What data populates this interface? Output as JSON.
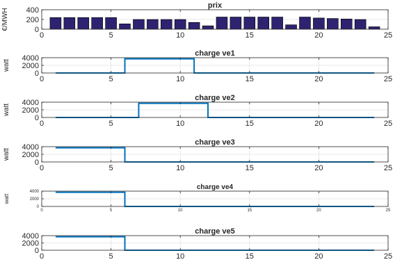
{
  "chart_data": [
    {
      "type": "bar",
      "title": "prix",
      "xlabel": "",
      "ylabel": "€/MWH",
      "xlim": [
        0,
        25
      ],
      "ylim": [
        0,
        400
      ],
      "xticks": [
        0,
        5,
        10,
        15,
        20,
        25
      ],
      "yticks": [
        0,
        200,
        400
      ],
      "grid": true,
      "bar_color": "#2e2370",
      "x": [
        1,
        2,
        3,
        4,
        5,
        6,
        7,
        8,
        9,
        10,
        11,
        12,
        13,
        14,
        15,
        16,
        17,
        18,
        19,
        20,
        21,
        22,
        23,
        24
      ],
      "values": [
        240,
        240,
        240,
        240,
        240,
        110,
        200,
        200,
        200,
        200,
        140,
        70,
        250,
        250,
        250,
        250,
        250,
        90,
        250,
        230,
        220,
        210,
        200,
        50
      ]
    },
    {
      "type": "line",
      "title": "charge ve1",
      "xlabel": "",
      "ylabel": "watt",
      "xlim": [
        0,
        25
      ],
      "ylim": [
        0,
        4000
      ],
      "xticks": [
        0,
        5,
        10,
        15,
        20,
        25
      ],
      "yticks": [
        0,
        2000,
        4000
      ],
      "grid": true,
      "line_color": "#0072bd",
      "step": "post",
      "x": [
        1,
        6,
        11,
        24
      ],
      "values": [
        0,
        3700,
        0,
        0
      ]
    },
    {
      "type": "line",
      "title": "charge ve2",
      "xlabel": "",
      "ylabel": "watt",
      "xlim": [
        0,
        25
      ],
      "ylim": [
        0,
        4000
      ],
      "xticks": [
        0,
        5,
        10,
        15,
        20,
        25
      ],
      "yticks": [
        0,
        2000,
        4000
      ],
      "grid": true,
      "line_color": "#0072bd",
      "step": "post",
      "x": [
        1,
        7,
        12,
        24
      ],
      "values": [
        0,
        3700,
        0,
        0
      ]
    },
    {
      "type": "line",
      "title": "charge ve3",
      "xlabel": "",
      "ylabel": "watt",
      "xlim": [
        0,
        25
      ],
      "ylim": [
        0,
        4000
      ],
      "xticks": [
        0,
        5,
        10,
        15,
        20,
        25
      ],
      "yticks": [
        0,
        2000,
        4000
      ],
      "grid": true,
      "line_color": "#0072bd",
      "step": "post",
      "x": [
        1,
        6,
        24
      ],
      "values": [
        3700,
        0,
        0
      ]
    },
    {
      "type": "line",
      "title": "charge ve4",
      "xlabel": "",
      "ylabel": "watt",
      "xlim": [
        0,
        25
      ],
      "ylim": [
        0,
        4000
      ],
      "xticks": [
        0,
        5,
        10,
        15,
        20,
        25
      ],
      "yticks": [
        0,
        2000,
        4000
      ],
      "grid": true,
      "line_color": "#0072bd",
      "step": "post",
      "x": [
        1,
        6,
        24
      ],
      "values": [
        3700,
        0,
        0
      ]
    },
    {
      "type": "line",
      "title": "charge ve5",
      "xlabel": "",
      "ylabel": "",
      "xlim": [
        0,
        25
      ],
      "ylim": [
        0,
        4000
      ],
      "xticks": [
        0,
        5,
        10,
        15,
        20,
        25
      ],
      "yticks": [
        0,
        2000,
        4000
      ],
      "grid": true,
      "line_color": "#0072bd",
      "step": "post",
      "x": [
        1,
        6,
        24
      ],
      "values": [
        3700,
        0,
        0
      ]
    }
  ]
}
